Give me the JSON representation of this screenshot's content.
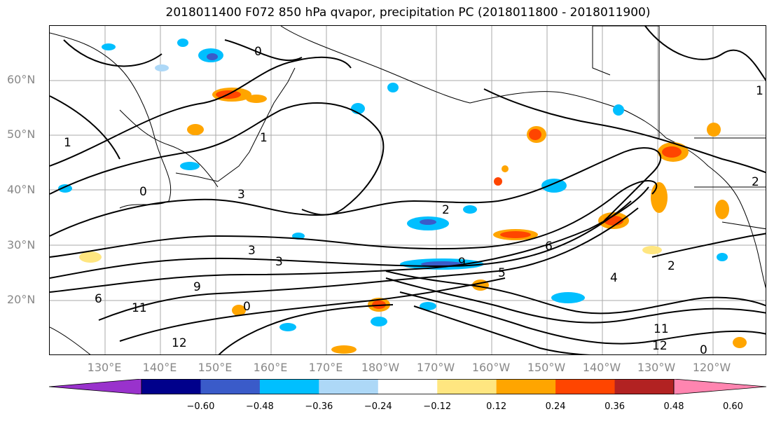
{
  "title": "2018011400 F072 850 hPa qvapor, precipitation PC (2018011800 - 2018011900)",
  "latitude_labels": [
    "60°N",
    "50°N",
    "40°N",
    "30°N",
    "20°N"
  ],
  "longitude_labels": [
    "130°E",
    "140°E",
    "150°E",
    "160°E",
    "170°E",
    "180°W",
    "170°W",
    "160°W",
    "150°W",
    "140°W",
    "130°W",
    "120°W"
  ],
  "colorbar": {
    "ticks": [
      "−0.60",
      "−0.48",
      "−0.36",
      "−0.24",
      "−0.12",
      "0.12",
      "0.24",
      "0.36",
      "0.48",
      "0.60"
    ],
    "colors": [
      "#9932cc",
      "#00008b",
      "#3a5bc9",
      "#00bfff",
      "#add8f7",
      "#ffffff",
      "#ffe680",
      "#ffa500",
      "#ff4500",
      "#b22222",
      "#ff85b0"
    ]
  },
  "contour_labels": [
    "0",
    "0",
    "1",
    "1",
    "2",
    "3",
    "3",
    "3",
    "6",
    "9",
    "11",
    "12",
    "0",
    "2",
    "4",
    "6",
    "9",
    "11",
    "12",
    "5",
    "1",
    "0",
    "2"
  ],
  "colors": {
    "grid": "#aaaaaa",
    "contour": "#000000",
    "tick_text": "#888888"
  }
}
